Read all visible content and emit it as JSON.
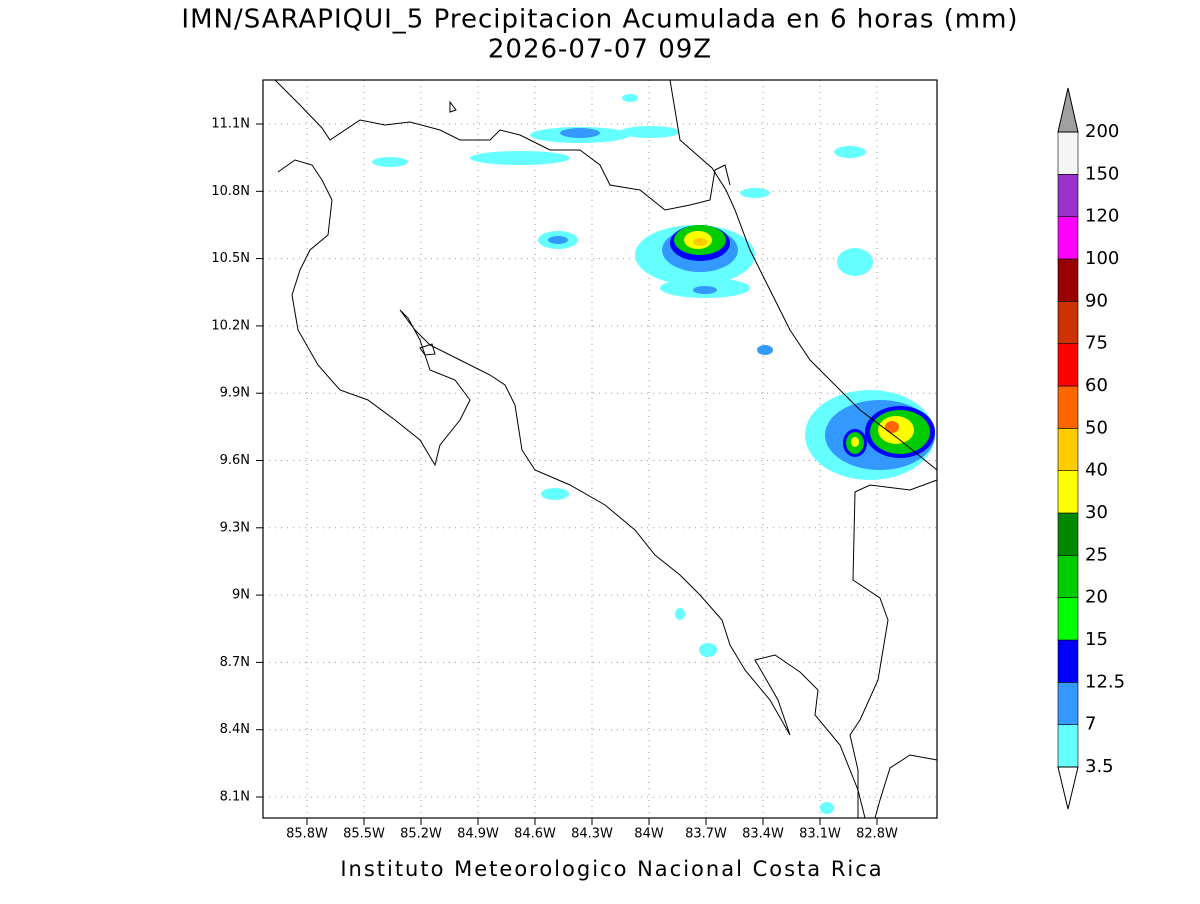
{
  "title": "IMN/SARAPIQUI_5 Precipitacion Acumulada en 6 horas (mm)",
  "subtitle": "2026-07-07 09Z",
  "footer": "Instituto Meteorologico Nacional Costa Rica",
  "lat_labels": [
    "11.1N",
    "10.8N",
    "10.5N",
    "10.2N",
    "9.9N",
    "9.6N",
    "9.3N",
    "9N",
    "8.7N",
    "8.4N",
    "8.1N"
  ],
  "lon_labels": [
    "85.8W",
    "85.5W",
    "85.2W",
    "84.9W",
    "84.6W",
    "84.3W",
    "84W",
    "83.7W",
    "83.4W",
    "83.1W",
    "82.8W"
  ],
  "colorbar": {
    "levels": [
      3.5,
      7,
      12.5,
      15,
      20,
      25,
      30,
      40,
      50,
      60,
      75,
      90,
      100,
      120,
      150,
      200
    ],
    "colors": [
      "#66ffff",
      "#3399ff",
      "#0000ff",
      "#00ff00",
      "#00cc00",
      "#008800",
      "#ffff00",
      "#ffcc00",
      "#ff6600",
      "#ff0000",
      "#cc3300",
      "#990000",
      "#ff00ff",
      "#9933cc",
      "#f5f5f5"
    ],
    "over_color": "#a0a0a0",
    "under_color": "#ffffff"
  }
}
